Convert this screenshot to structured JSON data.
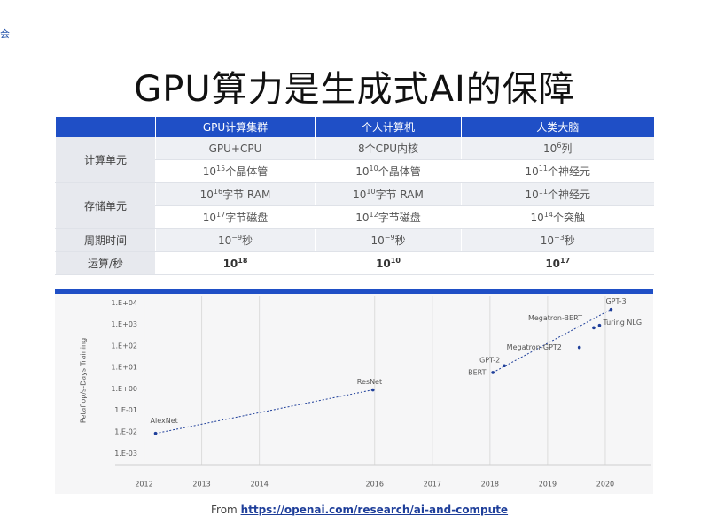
{
  "corner_text": "会",
  "title": "GPU算力是生成式AI的保障",
  "table": {
    "header": [
      "GPU计算集群",
      "个人计算机",
      "人类大脑"
    ],
    "groups": [
      {
        "label": "计算单元",
        "rows": [
          [
            "GPU+CPU",
            "8个CPU内核",
            {
              "base": "10",
              "sup": "6",
              "rest": "列"
            }
          ],
          [
            {
              "base": "10",
              "sup": "15",
              "rest": "个晶体管"
            },
            {
              "base": "10",
              "sup": "10",
              "rest": "个晶体管"
            },
            {
              "base": "10",
              "sup": "11",
              "rest": "个神经元"
            }
          ]
        ]
      },
      {
        "label": "存储单元",
        "rows": [
          [
            {
              "base": "10",
              "sup": "16",
              "rest": "字节 RAM"
            },
            {
              "base": "10",
              "sup": "10",
              "rest": "字节 RAM"
            },
            {
              "base": "10",
              "sup": "11",
              "rest": "个神经元"
            }
          ],
          [
            {
              "base": "10",
              "sup": "17",
              "rest": "字节磁盘"
            },
            {
              "base": "10",
              "sup": "12",
              "rest": "字节磁盘"
            },
            {
              "base": "10",
              "sup": "14",
              "rest": "个突触"
            }
          ]
        ]
      },
      {
        "label": "周期时间",
        "rows": [
          [
            {
              "base": "10",
              "sup": "−9",
              "rest": "秒"
            },
            {
              "base": "10",
              "sup": "−9",
              "rest": "秒"
            },
            {
              "base": "10",
              "sup": "−3",
              "rest": "秒"
            }
          ]
        ]
      },
      {
        "label": "运算/秒",
        "bold": true,
        "rows": [
          [
            {
              "base": "10",
              "sup": "18"
            },
            {
              "base": "10",
              "sup": "10"
            },
            {
              "base": "10",
              "sup": "17"
            }
          ]
        ]
      }
    ]
  },
  "chart_data": {
    "type": "scatter",
    "y_label": "Petaflop/s-Days Training",
    "log_y": true,
    "color": "#1f3f9a",
    "xlim": [
      2011.5,
      2020.8
    ],
    "xticks": [
      2012,
      2013,
      2014,
      2016,
      2017,
      2018,
      2019,
      2020
    ],
    "ylim": [
      0.0003,
      20000
    ],
    "yticks": [
      {
        "value": 10000,
        "label": "1.E+04"
      },
      {
        "value": 1000,
        "label": "1.E+03"
      },
      {
        "value": 100,
        "label": "1.E+02"
      },
      {
        "value": 10,
        "label": "1.E+01"
      },
      {
        "value": 1,
        "label": "1.E+00"
      },
      {
        "value": 0.1,
        "label": "1.E-01"
      },
      {
        "value": 0.01,
        "label": "1.E-02"
      },
      {
        "value": 0.001,
        "label": "1.E-03"
      }
    ],
    "labels": [
      "AlexNet",
      "ResNet",
      "BERT",
      "GPT-2",
      "Megatron-GPT2",
      "Megatron-BERT",
      "Turing NLG",
      "GPT-3"
    ],
    "x": [
      2012.2,
      2015.97,
      2018.05,
      2018.25,
      2019.55,
      2019.8,
      2019.9,
      2020.1
    ],
    "values": [
      0.0085,
      0.9,
      5.8,
      12,
      85,
      700,
      900,
      5000
    ],
    "trends": [
      [
        0,
        1
      ],
      [
        2,
        7
      ]
    ]
  },
  "source": {
    "prefix": "From",
    "link": "https://openai.com/research/ai-and-compute"
  }
}
